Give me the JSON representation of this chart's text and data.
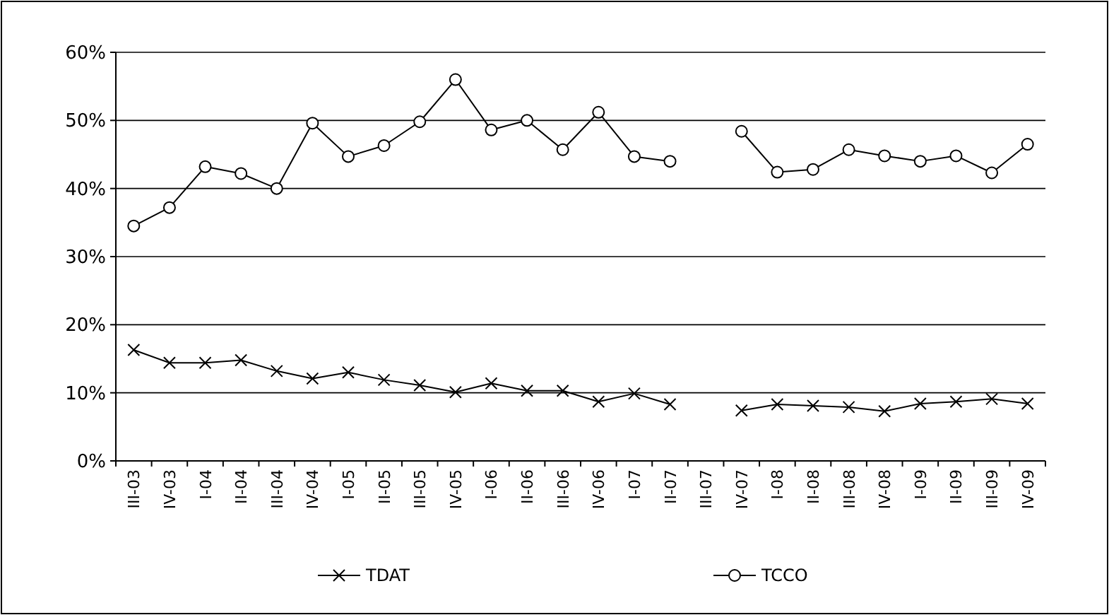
{
  "chart_data": {
    "type": "line",
    "categories": [
      "III-03",
      "IV-03",
      "I-04",
      "II-04",
      "III-04",
      "IV-04",
      "I-05",
      "II-05",
      "III-05",
      "IV-05",
      "I-06",
      "II-06",
      "III-06",
      "IV-06",
      "I-07",
      "II-07",
      "III-07",
      "IV-07",
      "I-08",
      "II-08",
      "III-08",
      "IV-08",
      "I-09",
      "II-09",
      "III-09",
      "IV-09"
    ],
    "series": [
      {
        "name": "TDAT",
        "color": "#000000",
        "marker": "cross",
        "values": [
          16.3,
          14.4,
          14.4,
          14.8,
          13.2,
          12.1,
          13,
          11.9,
          11.1,
          10.1,
          11.4,
          10.3,
          10.3,
          8.7,
          9.9,
          8.3,
          null,
          7.4,
          8.3,
          8.1,
          7.9,
          7.3,
          8.4,
          8.7,
          9.1,
          8.4
        ]
      },
      {
        "name": "TCCO",
        "color": "#000000",
        "marker": "circle",
        "values": [
          34.5,
          37.2,
          43.2,
          42.2,
          40,
          49.6,
          44.7,
          46.3,
          49.8,
          56,
          48.6,
          50,
          45.7,
          51.2,
          44.7,
          44,
          null,
          48.4,
          42.4,
          42.8,
          45.7,
          44.8,
          44,
          44.8,
          42.3,
          46.5
        ]
      }
    ],
    "ylim": [
      0,
      60
    ],
    "yticks": [
      {
        "value": 0,
        "label": "0%"
      },
      {
        "value": 10,
        "label": "10%"
      },
      {
        "value": 20,
        "label": "20%"
      },
      {
        "value": 30,
        "label": "30%"
      },
      {
        "value": 40,
        "label": "40%"
      },
      {
        "value": 50,
        "label": "50%"
      },
      {
        "value": 60,
        "label": "60%"
      }
    ],
    "grid": "y",
    "legend": "bottom",
    "line_style": "solid"
  }
}
